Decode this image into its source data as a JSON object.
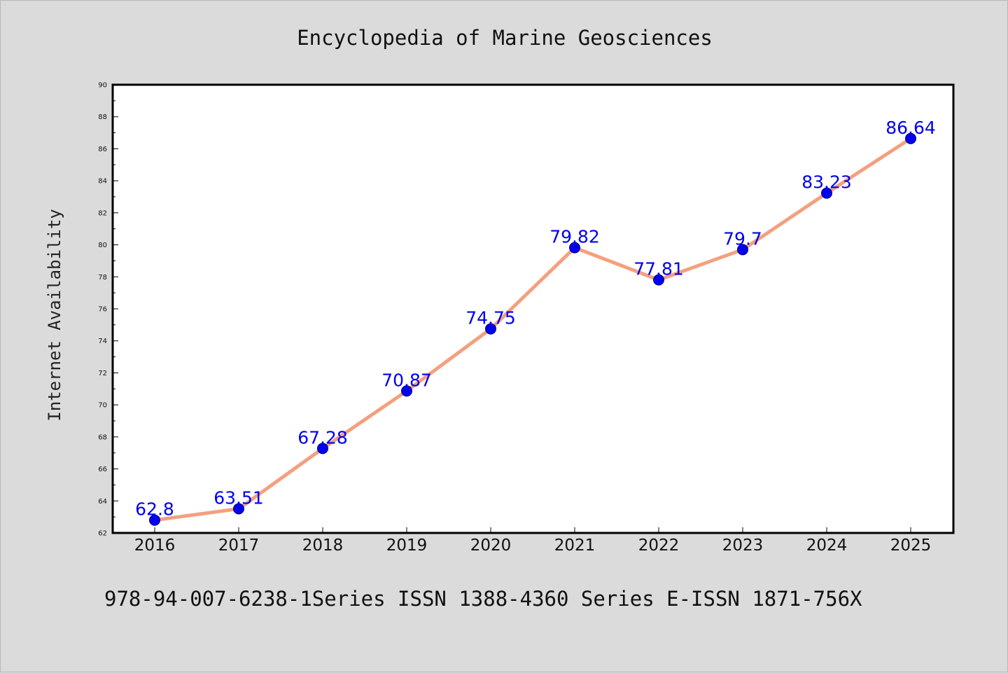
{
  "colors": {
    "background": "#dbdbdb",
    "plot_background": "#ffffff",
    "line": "#f4a07e",
    "marker": "#0000ee",
    "label": "#0000ee"
  },
  "header": {
    "title": "Encyclopedia of Marine Geosciences"
  },
  "footer": {
    "text": "978-94-007-6238-1Series ISSN 1388-4360 Series E-ISSN 1871-756X"
  },
  "chart_data": {
    "type": "line",
    "title": "Encyclopedia of Marine Geosciences",
    "xlabel": "",
    "ylabel": "Internet Availability",
    "categories": [
      "2016",
      "2017",
      "2018",
      "2019",
      "2020",
      "2021",
      "2022",
      "2023",
      "2024",
      "2025"
    ],
    "series": [
      {
        "values": [
          62.8,
          63.51,
          67.28,
          70.87,
          74.75,
          79.82,
          77.81,
          79.7,
          83.23,
          86.64
        ],
        "labels": [
          "62.8",
          "63.51",
          "67.28",
          "70.87",
          "74.75",
          "79.82",
          "77.81",
          "79.7",
          "83.23",
          "86.64"
        ]
      }
    ],
    "ylim": [
      62,
      90
    ],
    "yticks": [
      62,
      64,
      66,
      68,
      70,
      72,
      74,
      76,
      78,
      80,
      82,
      84,
      86,
      88,
      90
    ],
    "grid": false,
    "legend": "none"
  }
}
